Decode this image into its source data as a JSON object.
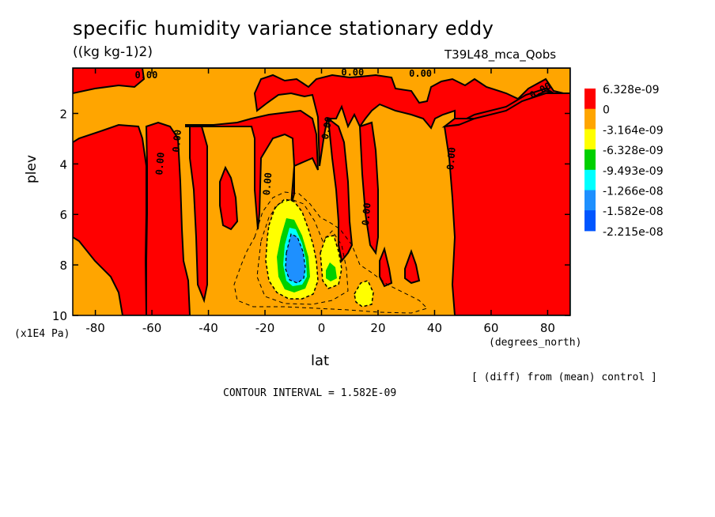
{
  "chart_data": {
    "type": "contour",
    "title": "specific humidity variance stationary eddy",
    "units": "((kg kg-1)2)",
    "experiment": "T39L48_mca_Qobs",
    "xlabel": "lat",
    "xunits": "(degrees_north)",
    "ylabel": "plev",
    "yunits": "(x1E4 Pa)",
    "x_ticks": [
      "-80",
      "-60",
      "-40",
      "-20",
      "0",
      "20",
      "40",
      "60",
      "80"
    ],
    "y_ticks": [
      "2",
      "4",
      "6",
      "8",
      "10"
    ],
    "xlim": [
      -88,
      88
    ],
    "ylim": [
      10,
      0.2
    ],
    "contour_labels": [
      "0.00",
      "0.00",
      "0.00",
      "0.00",
      "0.00",
      "0.00",
      "0.00",
      "0.00",
      "0.00",
      "0.00",
      "0.00",
      "0.00"
    ],
    "legend": [
      {
        "label": "6.328e-09",
        "color": "#ff0000"
      },
      {
        "label": "0",
        "color": "#ffa500"
      },
      {
        "label": "-3.164e-09",
        "color": "#ffff00"
      },
      {
        "label": "-6.328e-09",
        "color": "#00d000"
      },
      {
        "label": "-9.493e-09",
        "color": "#00ffff"
      },
      {
        "label": "-1.266e-08",
        "color": "#1e90ff"
      },
      {
        "label": "-1.582e-08",
        "color": "#0055ff"
      },
      {
        "label": "-2.215e-08",
        "color": null
      }
    ],
    "note": "[ (diff) from (mean) control ]",
    "contour_interval": "CONTOUR INTERVAL = 1.582E-09"
  }
}
